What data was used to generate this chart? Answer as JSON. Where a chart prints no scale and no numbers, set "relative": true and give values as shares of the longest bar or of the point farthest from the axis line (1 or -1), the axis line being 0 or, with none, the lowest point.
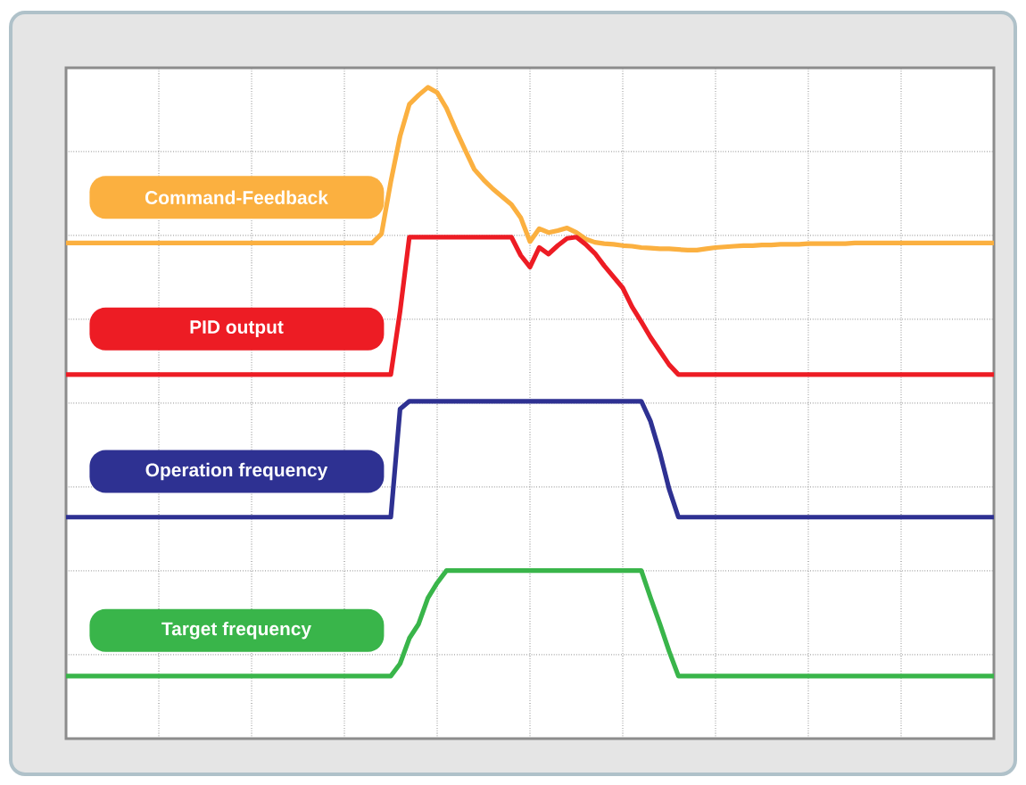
{
  "chart_data": {
    "type": "line",
    "relative": true,
    "grid": true,
    "categories": [
      null,
      null,
      null,
      null,
      null,
      null,
      null,
      null,
      null,
      null,
      null,
      null,
      null,
      null,
      null,
      null,
      null,
      null,
      null,
      null,
      null,
      null,
      null,
      null,
      null,
      null,
      null,
      null,
      null,
      null,
      null,
      null,
      null,
      null,
      null,
      null,
      null,
      null,
      null,
      null,
      null,
      null,
      null,
      null,
      null,
      null,
      null,
      null,
      null,
      null,
      null,
      null,
      null,
      null,
      null,
      null,
      null,
      null,
      null,
      null,
      null,
      null,
      null,
      null,
      null,
      null,
      null,
      null,
      null,
      null,
      null,
      null,
      null,
      null,
      null,
      null,
      null,
      null,
      null,
      null,
      null,
      null,
      null,
      null,
      null,
      null,
      null,
      null,
      null,
      null,
      null,
      null,
      null,
      null,
      null,
      null,
      null,
      null,
      null,
      null,
      null
    ],
    "series": [
      {
        "name": "Command-Feedback",
        "color": "#fbb040",
        "values": [
          0.761,
          0.761,
          0.761,
          0.761,
          0.761,
          0.761,
          0.761,
          0.761,
          0.761,
          0.761,
          0.761,
          0.761,
          0.761,
          0.761,
          0.761,
          0.761,
          0.761,
          0.761,
          0.761,
          0.761,
          0.761,
          0.761,
          0.761,
          0.761,
          0.761,
          0.761,
          0.761,
          0.761,
          0.761,
          0.761,
          0.761,
          0.761,
          0.761,
          0.761,
          0.775,
          0.855,
          0.925,
          0.974,
          0.988,
          1.0,
          0.992,
          0.968,
          0.935,
          0.904,
          0.874,
          0.858,
          0.844,
          0.832,
          0.82,
          0.8,
          0.763,
          0.783,
          0.777,
          0.78,
          0.784,
          0.777,
          0.767,
          0.762,
          0.76,
          0.759,
          0.757,
          0.756,
          0.754,
          0.753,
          0.752,
          0.752,
          0.751,
          0.75,
          0.75,
          0.752,
          0.754,
          0.755,
          0.756,
          0.757,
          0.757,
          0.758,
          0.758,
          0.759,
          0.759,
          0.759,
          0.76,
          0.76,
          0.76,
          0.76,
          0.76,
          0.761,
          0.761,
          0.761,
          0.761,
          0.761,
          0.761,
          0.761,
          0.761,
          0.761,
          0.761,
          0.761,
          0.761,
          0.761,
          0.761,
          0.761,
          0.761
        ]
      },
      {
        "name": "PID output",
        "color": "#ed1c24",
        "values": [
          0.559,
          0.559,
          0.559,
          0.559,
          0.559,
          0.559,
          0.559,
          0.559,
          0.559,
          0.559,
          0.559,
          0.559,
          0.559,
          0.559,
          0.559,
          0.559,
          0.559,
          0.559,
          0.559,
          0.559,
          0.559,
          0.559,
          0.559,
          0.559,
          0.559,
          0.559,
          0.559,
          0.559,
          0.559,
          0.559,
          0.559,
          0.559,
          0.559,
          0.559,
          0.559,
          0.559,
          0.656,
          0.77,
          0.77,
          0.77,
          0.77,
          0.77,
          0.77,
          0.77,
          0.77,
          0.77,
          0.77,
          0.77,
          0.77,
          0.742,
          0.724,
          0.754,
          0.744,
          0.757,
          0.768,
          0.77,
          0.759,
          0.745,
          0.726,
          0.709,
          0.692,
          0.663,
          0.64,
          0.616,
          0.595,
          0.574,
          0.559,
          0.559,
          0.559,
          0.559,
          0.559,
          0.559,
          0.559,
          0.559,
          0.559,
          0.559,
          0.559,
          0.559,
          0.559,
          0.559,
          0.559,
          0.559,
          0.559,
          0.559,
          0.559,
          0.559,
          0.559,
          0.559,
          0.559,
          0.559,
          0.559,
          0.559,
          0.559,
          0.559,
          0.559,
          0.559,
          0.559,
          0.559,
          0.559,
          0.559,
          0.559
        ]
      },
      {
        "name": "Operation frequency",
        "color": "#2e3192",
        "values": [
          0.34,
          0.34,
          0.34,
          0.34,
          0.34,
          0.34,
          0.34,
          0.34,
          0.34,
          0.34,
          0.34,
          0.34,
          0.34,
          0.34,
          0.34,
          0.34,
          0.34,
          0.34,
          0.34,
          0.34,
          0.34,
          0.34,
          0.34,
          0.34,
          0.34,
          0.34,
          0.34,
          0.34,
          0.34,
          0.34,
          0.34,
          0.34,
          0.34,
          0.34,
          0.34,
          0.34,
          0.506,
          0.518,
          0.518,
          0.518,
          0.518,
          0.518,
          0.518,
          0.518,
          0.518,
          0.518,
          0.518,
          0.518,
          0.518,
          0.518,
          0.518,
          0.518,
          0.518,
          0.518,
          0.518,
          0.518,
          0.518,
          0.518,
          0.518,
          0.518,
          0.518,
          0.518,
          0.518,
          0.487,
          0.439,
          0.383,
          0.34,
          0.34,
          0.34,
          0.34,
          0.34,
          0.34,
          0.34,
          0.34,
          0.34,
          0.34,
          0.34,
          0.34,
          0.34,
          0.34,
          0.34,
          0.34,
          0.34,
          0.34,
          0.34,
          0.34,
          0.34,
          0.34,
          0.34,
          0.34,
          0.34,
          0.34,
          0.34,
          0.34,
          0.34,
          0.34,
          0.34,
          0.34,
          0.34,
          0.34,
          0.34
        ]
      },
      {
        "name": "Target frequency",
        "color": "#39b54a",
        "values": [
          0.096,
          0.096,
          0.096,
          0.096,
          0.096,
          0.096,
          0.096,
          0.096,
          0.096,
          0.096,
          0.096,
          0.096,
          0.096,
          0.096,
          0.096,
          0.096,
          0.096,
          0.096,
          0.096,
          0.096,
          0.096,
          0.096,
          0.096,
          0.096,
          0.096,
          0.096,
          0.096,
          0.096,
          0.096,
          0.096,
          0.096,
          0.096,
          0.096,
          0.096,
          0.096,
          0.096,
          0.115,
          0.154,
          0.176,
          0.216,
          0.239,
          0.258,
          0.258,
          0.258,
          0.258,
          0.258,
          0.258,
          0.258,
          0.258,
          0.258,
          0.258,
          0.258,
          0.258,
          0.258,
          0.258,
          0.258,
          0.258,
          0.258,
          0.258,
          0.258,
          0.258,
          0.258,
          0.258,
          0.216,
          0.176,
          0.134,
          0.096,
          0.096,
          0.096,
          0.096,
          0.096,
          0.096,
          0.096,
          0.096,
          0.096,
          0.096,
          0.096,
          0.096,
          0.096,
          0.096,
          0.096,
          0.096,
          0.096,
          0.096,
          0.096,
          0.096,
          0.096,
          0.096,
          0.096,
          0.096,
          0.096,
          0.096,
          0.096,
          0.096,
          0.096,
          0.096,
          0.096,
          0.096,
          0.096,
          0.096,
          0.096
        ]
      }
    ]
  }
}
